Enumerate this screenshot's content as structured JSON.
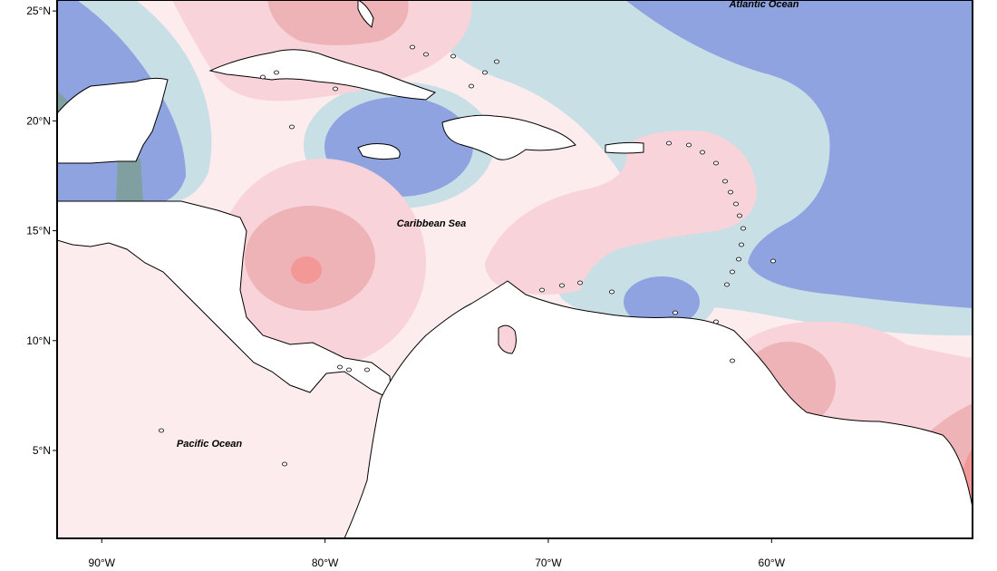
{
  "map": {
    "lon_range": [
      -92,
      -51
    ],
    "lat_range": [
      1,
      25.5
    ],
    "palette": {
      "frame": "#000000",
      "land": "#ffffff",
      "coast": "#000000",
      "strong_negative": "#8fa3e0",
      "weak_negative": "#c9dfe6",
      "near_zero": "#fdecee",
      "weak_positive": "#f8d3d9",
      "moderate_positive": "#eeb3b6",
      "strong_positive": "#f49797"
    },
    "y_ticks": [
      {
        "lat": 25,
        "label": "25°N"
      },
      {
        "lat": 20,
        "label": "20°N"
      },
      {
        "lat": 15,
        "label": "15°N"
      },
      {
        "lat": 10,
        "label": "10°N"
      },
      {
        "lat": 5,
        "label": "5°N"
      }
    ],
    "x_ticks": [
      {
        "lon": -90,
        "label": "90°W"
      },
      {
        "lon": -80,
        "label": "80°W"
      },
      {
        "lon": -70,
        "label": "70°W"
      },
      {
        "lon": -60,
        "label": "60°W"
      }
    ],
    "labels": {
      "atlantic": "Atlantic Ocean",
      "caribbean": "Caribbean Sea",
      "pacific": "Pacific Ocean"
    }
  }
}
